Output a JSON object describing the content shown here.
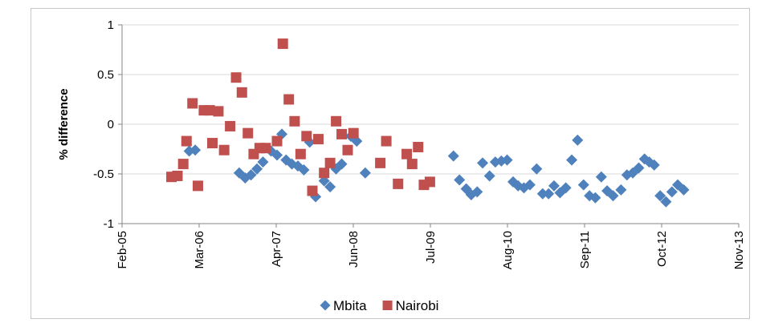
{
  "chart_data": {
    "type": "scatter",
    "title": "",
    "xlabel": "",
    "ylabel": "% difference",
    "ylim": [
      -1,
      1
    ],
    "yticks": [
      "1",
      "0.5",
      "0",
      "-0.5",
      "-1"
    ],
    "xlim": [
      "2005-02-01",
      "2013-11-01"
    ],
    "xticks": [
      "Feb-05",
      "Mar-06",
      "Apr-07",
      "Jun-08",
      "Jul-09",
      "Aug-10",
      "Sep-11",
      "Oct-12",
      "Nov-13"
    ],
    "legend_position": "bottom",
    "grid": true,
    "series": [
      {
        "name": "Mbita",
        "color": "#4f81bd",
        "marker": "diamond",
        "points": [
          [
            "2006-01-15",
            -0.27
          ],
          [
            "2006-02-15",
            -0.26
          ],
          [
            "2006-10-01",
            -0.49
          ],
          [
            "2006-11-01",
            -0.54
          ],
          [
            "2006-12-01",
            -0.51
          ],
          [
            "2007-01-01",
            -0.45
          ],
          [
            "2007-02-01",
            -0.38
          ],
          [
            "2007-03-15",
            -0.27
          ],
          [
            "2007-04-15",
            -0.31
          ],
          [
            "2007-05-10",
            -0.1
          ],
          [
            "2007-06-01",
            -0.36
          ],
          [
            "2007-07-01",
            -0.4
          ],
          [
            "2007-08-01",
            -0.42
          ],
          [
            "2007-09-01",
            -0.46
          ],
          [
            "2007-10-01",
            -0.18
          ],
          [
            "2007-11-01",
            -0.73
          ],
          [
            "2007-12-15",
            -0.57
          ],
          [
            "2008-01-15",
            -0.63
          ],
          [
            "2008-02-15",
            -0.45
          ],
          [
            "2008-03-15",
            -0.4
          ],
          [
            "2008-05-01",
            -0.12
          ],
          [
            "2008-06-01",
            -0.17
          ],
          [
            "2008-07-15",
            -0.49
          ],
          [
            "2009-10-15",
            -0.32
          ],
          [
            "2009-11-15",
            -0.56
          ],
          [
            "2009-12-20",
            -0.65
          ],
          [
            "2010-01-15",
            -0.71
          ],
          [
            "2010-02-15",
            -0.68
          ],
          [
            "2010-03-15",
            -0.39
          ],
          [
            "2010-04-20",
            -0.52
          ],
          [
            "2010-05-20",
            -0.38
          ],
          [
            "2010-06-20",
            -0.37
          ],
          [
            "2010-07-20",
            -0.36
          ],
          [
            "2010-08-20",
            -0.58
          ],
          [
            "2010-09-15",
            -0.62
          ],
          [
            "2010-10-15",
            -0.64
          ],
          [
            "2010-11-15",
            -0.61
          ],
          [
            "2010-12-20",
            -0.45
          ],
          [
            "2011-01-20",
            -0.7
          ],
          [
            "2011-02-20",
            -0.7
          ],
          [
            "2011-03-20",
            -0.62
          ],
          [
            "2011-04-20",
            -0.69
          ],
          [
            "2011-05-20",
            -0.64
          ],
          [
            "2011-06-20",
            -0.36
          ],
          [
            "2011-07-20",
            -0.16
          ],
          [
            "2011-08-20",
            -0.61
          ],
          [
            "2011-09-20",
            -0.72
          ],
          [
            "2011-10-20",
            -0.74
          ],
          [
            "2011-11-20",
            -0.53
          ],
          [
            "2011-12-20",
            -0.67
          ],
          [
            "2012-01-20",
            -0.72
          ],
          [
            "2012-03-01",
            -0.66
          ],
          [
            "2012-04-01",
            -0.51
          ],
          [
            "2012-05-01",
            -0.49
          ],
          [
            "2012-06-01",
            -0.44
          ],
          [
            "2012-07-01",
            -0.35
          ],
          [
            "2012-07-25",
            -0.38
          ],
          [
            "2012-08-20",
            -0.41
          ],
          [
            "2012-09-20",
            -0.72
          ],
          [
            "2012-10-20",
            -0.78
          ],
          [
            "2012-11-20",
            -0.68
          ],
          [
            "2012-12-20",
            -0.61
          ],
          [
            "2013-01-20",
            -0.66
          ]
        ]
      },
      {
        "name": "Nairobi",
        "color": "#c0504d",
        "marker": "square",
        "points": [
          [
            "2005-10-15",
            -0.53
          ],
          [
            "2005-11-15",
            -0.52
          ],
          [
            "2005-12-15",
            -0.4
          ],
          [
            "2006-01-01",
            -0.17
          ],
          [
            "2006-02-01",
            0.21
          ],
          [
            "2006-03-01",
            -0.62
          ],
          [
            "2006-04-01",
            0.14
          ],
          [
            "2006-05-01",
            0.14
          ],
          [
            "2006-05-15",
            -0.19
          ],
          [
            "2006-06-15",
            0.13
          ],
          [
            "2006-07-15",
            -0.26
          ],
          [
            "2006-08-15",
            -0.02
          ],
          [
            "2006-09-15",
            0.47
          ],
          [
            "2006-10-15",
            0.32
          ],
          [
            "2006-11-15",
            -0.09
          ],
          [
            "2006-12-15",
            -0.3
          ],
          [
            "2007-01-15",
            -0.24
          ],
          [
            "2007-02-15",
            -0.24
          ],
          [
            "2007-04-15",
            -0.17
          ],
          [
            "2007-05-15",
            0.81
          ],
          [
            "2007-06-15",
            0.25
          ],
          [
            "2007-07-15",
            0.03
          ],
          [
            "2007-08-15",
            -0.3
          ],
          [
            "2007-09-15",
            -0.12
          ],
          [
            "2007-10-15",
            -0.67
          ],
          [
            "2007-11-15",
            -0.15
          ],
          [
            "2007-12-15",
            -0.49
          ],
          [
            "2008-01-15",
            -0.39
          ],
          [
            "2008-02-15",
            0.03
          ],
          [
            "2008-03-15",
            -0.1
          ],
          [
            "2008-04-15",
            -0.26
          ],
          [
            "2008-05-15",
            -0.09
          ],
          [
            "2008-10-01",
            -0.39
          ],
          [
            "2008-11-01",
            -0.17
          ],
          [
            "2009-01-01",
            -0.6
          ],
          [
            "2009-02-15",
            -0.3
          ],
          [
            "2009-03-15",
            -0.4
          ],
          [
            "2009-04-15",
            -0.23
          ],
          [
            "2009-05-15",
            -0.61
          ],
          [
            "2009-06-15",
            -0.58
          ]
        ]
      }
    ]
  }
}
